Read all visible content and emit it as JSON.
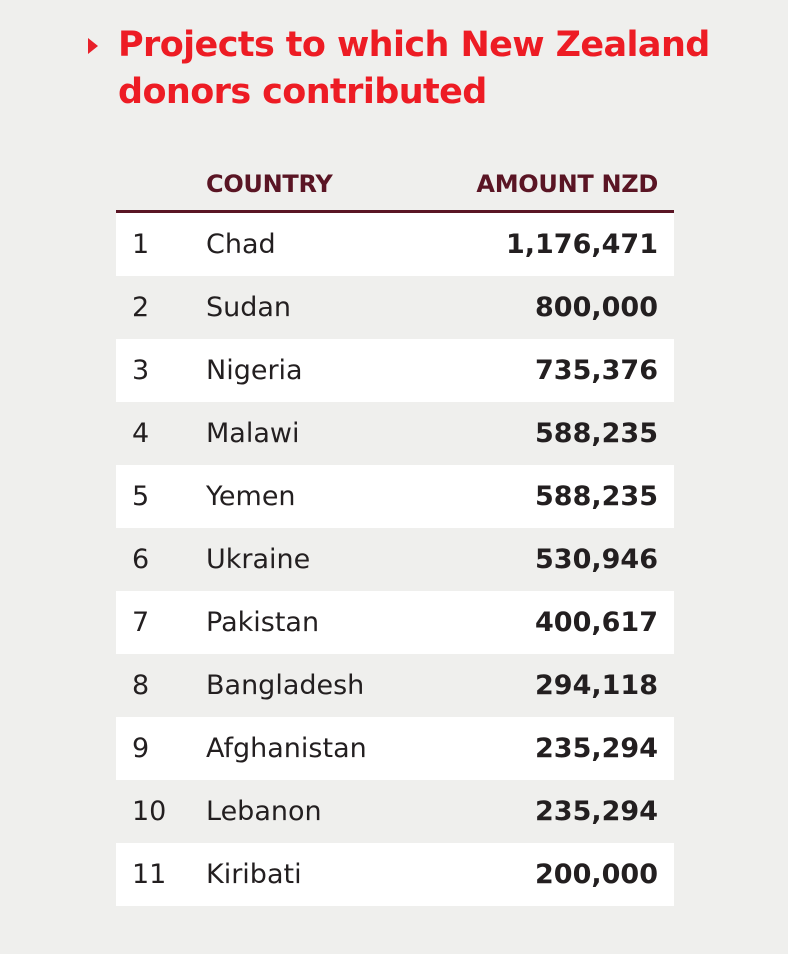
{
  "title": "Projects to which New Zealand donors contributed",
  "table": {
    "headers": {
      "rank": "",
      "country": "COUNTRY",
      "amount": "AMOUNT NZD"
    },
    "rows": [
      {
        "rank": "1",
        "country": "Chad",
        "amount": "1,176,471"
      },
      {
        "rank": "2",
        "country": "Sudan",
        "amount": "800,000"
      },
      {
        "rank": "3",
        "country": "Nigeria",
        "amount": "735,376"
      },
      {
        "rank": "4",
        "country": "Malawi",
        "amount": "588,235"
      },
      {
        "rank": "5",
        "country": "Yemen",
        "amount": "588,235"
      },
      {
        "rank": "6",
        "country": "Ukraine",
        "amount": "530,946"
      },
      {
        "rank": "7",
        "country": "Pakistan",
        "amount": "400,617"
      },
      {
        "rank": "8",
        "country": "Bangladesh",
        "amount": "294,118"
      },
      {
        "rank": "9",
        "country": "Afghanistan",
        "amount": "235,294"
      },
      {
        "rank": "10",
        "country": "Lebanon",
        "amount": "235,294"
      },
      {
        "rank": "11",
        "country": "Kiribati",
        "amount": "200,000"
      }
    ]
  },
  "colors": {
    "title": "#ed1c24",
    "header_text": "#5a1524",
    "header_rule": "#5a1524",
    "row_stripe": "#ffffff",
    "background": "#efefed"
  },
  "icons": {
    "title_marker": "triangle-right-icon"
  }
}
